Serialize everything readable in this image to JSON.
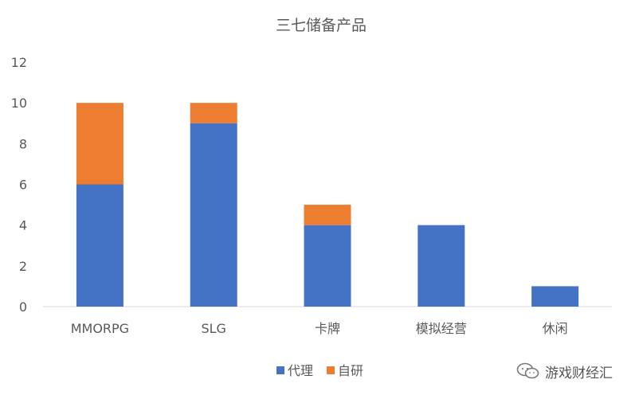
{
  "chart_data": {
    "type": "bar",
    "stacked": true,
    "title": "三七储备产品",
    "categories": [
      "MMORPG",
      "SLG",
      "卡牌",
      "模拟经营",
      "休闲"
    ],
    "series": [
      {
        "name": "代理",
        "color": "#4472C4",
        "values": [
          6,
          9,
          4,
          4,
          1
        ]
      },
      {
        "name": "自研",
        "color": "#ED7D31",
        "values": [
          4,
          1,
          1,
          0,
          0
        ]
      }
    ],
    "ylim": [
      0,
      12
    ],
    "yticks": [
      0,
      2,
      4,
      6,
      8,
      10,
      12
    ],
    "grid": false,
    "legend": "bottom"
  },
  "watermark": {
    "text": "游戏财经汇"
  }
}
